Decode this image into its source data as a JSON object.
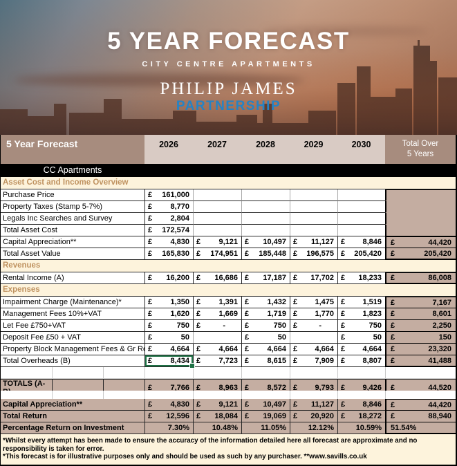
{
  "hero": {
    "title": "5 YEAR FORECAST",
    "subtitle": "CITY CENTRE APARTMENTS",
    "brand_line1": "PHILIP JAMES",
    "brand_line2": "PARTNERSHIP",
    "brand_color": "#2583c5"
  },
  "colors": {
    "header_brown": "#a78c7e",
    "year_strip": "#d9cbc4",
    "band_brown": "#c5aea2",
    "cream": "#fdf3dc",
    "section_text": "#bf9260",
    "selection_green": "#1e7145"
  },
  "table": {
    "corner_label": "5 Year Forecast",
    "years": [
      "2026",
      "2027",
      "2028",
      "2029",
      "2030"
    ],
    "total_header_line1": "Total Over",
    "total_header_line2": "5 Years",
    "subheader": "CC Apartments",
    "currency": "£",
    "rows": [
      {
        "kind": "section",
        "label": "Asset Cost and Income Overview"
      },
      {
        "kind": "data",
        "label": "Purchase Price",
        "values": [
          "161,000",
          "",
          "",
          "",
          ""
        ],
        "block": "top"
      },
      {
        "kind": "data",
        "label": "Property Taxes (Stamp 5-7%)",
        "values": [
          "8,770",
          "",
          "",
          "",
          ""
        ],
        "block": "mid"
      },
      {
        "kind": "data",
        "label": "Legals Inc Searches and Survey",
        "values": [
          "2,804",
          "",
          "",
          "",
          ""
        ],
        "block": "mid"
      },
      {
        "kind": "data",
        "label": "Total Asset Cost",
        "values": [
          "172,574",
          "",
          "",
          "",
          ""
        ],
        "block": "bottom"
      },
      {
        "kind": "data",
        "label": "Capital Appreciation**",
        "values": [
          "4,830",
          "9,121",
          "10,497",
          "11,127",
          "8,846"
        ],
        "total": "44,420",
        "totline": "top"
      },
      {
        "kind": "data",
        "label": "Total Asset Value",
        "values": [
          "165,830",
          "174,951",
          "185,448",
          "196,575",
          "205,420"
        ],
        "total": "205,420",
        "thick": true
      },
      {
        "kind": "section",
        "label": "Revenues"
      },
      {
        "kind": "data",
        "label": "Rental Income (A)",
        "values": [
          "16,200",
          "16,686",
          "17,187",
          "17,702",
          "18,233"
        ],
        "total": "86,008",
        "totline": "top",
        "thick": true
      },
      {
        "kind": "section",
        "label": "Expenses"
      },
      {
        "kind": "data",
        "label": "Impairment Charge (Maintenance)*",
        "values": [
          "1,350",
          "1,391",
          "1,432",
          "1,475",
          "1,519"
        ],
        "total": "7,167",
        "totline": "top"
      },
      {
        "kind": "data",
        "label": "Management Fees 10%+VAT",
        "values": [
          "1,620",
          "1,669",
          "1,719",
          "1,770",
          "1,823"
        ],
        "total": "8,601"
      },
      {
        "kind": "data",
        "label": "Let Fee £750+VAT",
        "values": [
          "750",
          "-",
          "750",
          "-",
          "750"
        ],
        "total": "2,250"
      },
      {
        "kind": "data",
        "label": "Deposit Fee £50 + VAT",
        "values": [
          "50",
          "",
          "50",
          "",
          "50"
        ],
        "total": "150"
      },
      {
        "kind": "data",
        "label": "Property Block Management Fees & Gr Rent",
        "values": [
          "4,664",
          "4,664",
          "4,664",
          "4,664",
          "4,664"
        ],
        "total": "23,320"
      },
      {
        "kind": "data",
        "label": "Total Overheads (B)",
        "values": [
          "8,434",
          "7,723",
          "8,615",
          "7,909",
          "8,807"
        ],
        "total": "41,488",
        "thick": true,
        "selected": 0
      },
      {
        "kind": "blank"
      },
      {
        "kind": "totals",
        "label": "TOTALS (A-B)",
        "values": [
          "7,766",
          "8,963",
          "8,572",
          "9,793",
          "9,426"
        ],
        "total": "44,520"
      },
      {
        "kind": "gap"
      },
      {
        "kind": "band",
        "label": "Capital Appreciation**",
        "values": [
          "4,830",
          "9,121",
          "10,497",
          "11,127",
          "8,846"
        ],
        "total": "44,420",
        "totline": "top"
      },
      {
        "kind": "band",
        "label": "Total Return",
        "values": [
          "12,596",
          "18,084",
          "19,069",
          "20,920",
          "18,272"
        ],
        "total": "88,940"
      },
      {
        "kind": "band",
        "label": "Percentage Return on Investment",
        "values": [
          "7.30%",
          "10.48%",
          "11.05%",
          "12.12%",
          "10.59%"
        ],
        "total": "51.54%",
        "percent": true,
        "thick": true
      }
    ]
  },
  "footnotes": [
    "*Whilst every attempt has been made to ensure the accuracy of the information detailed here all forecast are approximate and no responsibility is taken for error.",
    "*This forecast is for illustrative purposes only and should be used as such by any purchaser. **www.savills.co.uk"
  ]
}
